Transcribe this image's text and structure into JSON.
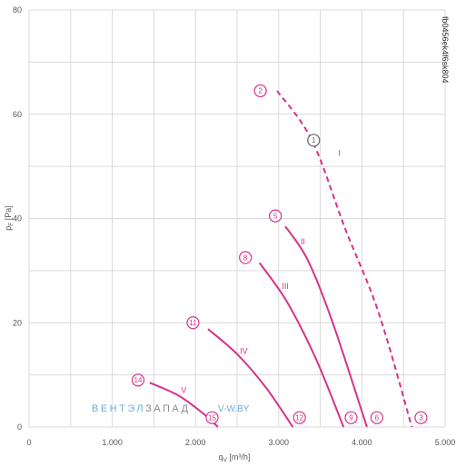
{
  "chart_data": {
    "type": "line",
    "xlabel": "q",
    "xlabel_sub": "V",
    "xlabel_unit": " [m³/h]",
    "ylabel": "p",
    "ylabel_sub": "F",
    "ylabel_unit": " [Pa]",
    "xlim": [
      0,
      5000
    ],
    "ylim": [
      0,
      80
    ],
    "x_ticks": [
      0,
      1000,
      2000,
      3000,
      4000,
      5000
    ],
    "x_tick_labels": [
      "0",
      "1.000",
      "2.000",
      "3.000",
      "4.000",
      "5.000"
    ],
    "y_ticks": [
      0,
      20,
      40,
      60,
      80
    ],
    "y_tick_labels": [
      "0",
      "20",
      "40",
      "60",
      "80"
    ],
    "grid": true,
    "side_code": "fb0456ek4f6sk804",
    "watermark": {
      "part1": "ВЕНТЭЛ",
      "part2": "ЗАПАД",
      "part3": "V-W.BY"
    },
    "colors": {
      "curve": "#d6338a",
      "grid": "#d9d9d9",
      "watermark_blue": "#6aaedc",
      "watermark_gray": "#8a8a8a",
      "text": "#555555"
    },
    "series": [
      {
        "name": "I",
        "style": "dashed",
        "points": [
          [
            2980,
            64.5
          ],
          [
            3400,
            55
          ],
          [
            3800,
            38
          ],
          [
            4200,
            22
          ],
          [
            4600,
            0
          ]
        ],
        "label_at": [
          3730,
          52
        ]
      },
      {
        "name": "II",
        "style": "solid",
        "points": [
          [
            3080,
            38.5
          ],
          [
            3350,
            32
          ],
          [
            3650,
            20
          ],
          [
            4060,
            0
          ]
        ],
        "label_at": [
          3290,
          35
        ]
      },
      {
        "name": "III",
        "style": "solid",
        "points": [
          [
            2770,
            31.5
          ],
          [
            3100,
            24
          ],
          [
            3450,
            13
          ],
          [
            3780,
            0
          ]
        ],
        "label_at": [
          3080,
          26.5
        ]
      },
      {
        "name": "IV",
        "style": "solid",
        "points": [
          [
            2150,
            18.8
          ],
          [
            2500,
            14
          ],
          [
            2850,
            7.5
          ],
          [
            3170,
            0
          ]
        ],
        "label_at": [
          2580,
          14
        ]
      },
      {
        "name": "V",
        "style": "solid",
        "points": [
          [
            1450,
            8.5
          ],
          [
            1800,
            6
          ],
          [
            2100,
            2.5
          ],
          [
            2270,
            0
          ]
        ],
        "label_at": [
          1860,
          6.5
        ]
      }
    ],
    "markers": [
      {
        "label": "2",
        "x": 2780,
        "y": 64.5,
        "style": "pink"
      },
      {
        "label": "1",
        "x": 3420,
        "y": 55,
        "style": "gray"
      },
      {
        "label": "5",
        "x": 2960,
        "y": 40.5,
        "style": "pink"
      },
      {
        "label": "8",
        "x": 2600,
        "y": 32.5,
        "style": "pink"
      },
      {
        "label": "11",
        "x": 1970,
        "y": 20,
        "style": "pink"
      },
      {
        "label": "14",
        "x": 1310,
        "y": 9,
        "style": "pink"
      },
      {
        "label": "15",
        "x": 2200,
        "y": 1.8,
        "style": "pink"
      },
      {
        "label": "12",
        "x": 3250,
        "y": 1.8,
        "style": "pink"
      },
      {
        "label": "9",
        "x": 3870,
        "y": 1.8,
        "style": "pink"
      },
      {
        "label": "6",
        "x": 4180,
        "y": 1.8,
        "style": "pink"
      },
      {
        "label": "3",
        "x": 4710,
        "y": 1.8,
        "style": "pink"
      }
    ]
  }
}
